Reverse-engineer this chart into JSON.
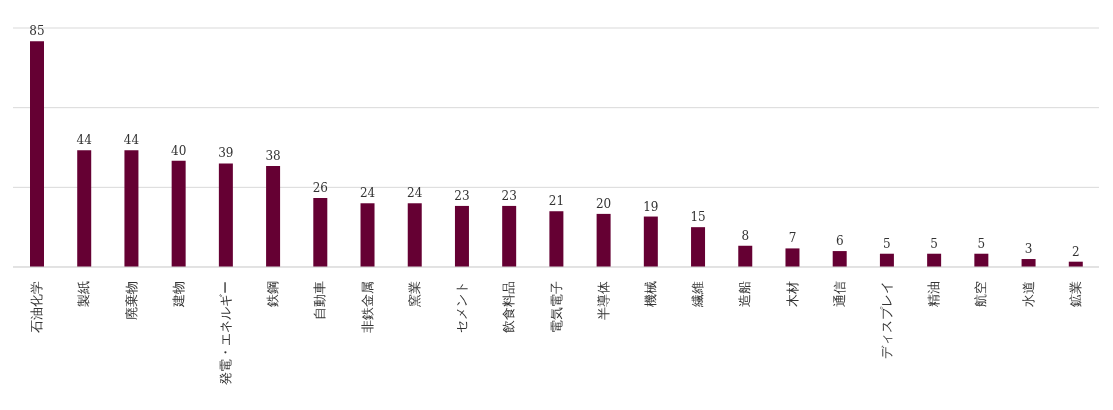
{
  "chart_data": {
    "type": "bar",
    "categories": [
      "石油化学",
      "製紙",
      "廃棄物",
      "建物",
      "発電・エネルギー",
      "鉄鋼",
      "自動車",
      "非鉄金属",
      "窯業",
      "セメント",
      "飲食料品",
      "電気電子",
      "半導体",
      "機械",
      "繊維",
      "造船",
      "木材",
      "通信",
      "ディスプレイ",
      "精油",
      "航空",
      "水道",
      "鉱業"
    ],
    "values": [
      85,
      44,
      44,
      40,
      39,
      38,
      26,
      24,
      24,
      23,
      23,
      21,
      20,
      19,
      15,
      8,
      7,
      6,
      5,
      5,
      5,
      3,
      2
    ],
    "color": "#650033",
    "ylim": [
      0,
      90
    ],
    "yticks": [
      {
        "value": 0,
        "label": null
      },
      {
        "value": 30,
        "label": null
      },
      {
        "value": 60,
        "label": null
      },
      {
        "value": 90,
        "label": null
      }
    ],
    "grid": "y",
    "tick_labels": "x",
    "data_labels": true
  }
}
